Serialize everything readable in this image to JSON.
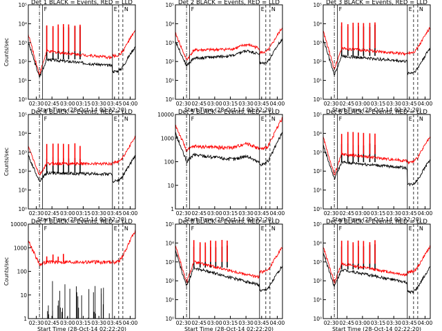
{
  "figure": {
    "xlabel": "Start Time (28-Oct-14 02:22:20)",
    "ylabel": "Counts/sec",
    "x_ticks": [
      "02:30",
      "02:45",
      "03:00",
      "03:15",
      "03:30",
      "03:45",
      "04:00"
    ],
    "x_range": [
      "02:22:20",
      "04:05"
    ],
    "line_markers": [
      {
        "time": "02:33",
        "style": "dash-dot",
        "label": ""
      },
      {
        "time": "02:36",
        "style": "solid",
        "label": "F"
      },
      {
        "time": "03:43",
        "style": "solid",
        "label": "E"
      },
      {
        "time": "03:49",
        "style": "dashed",
        "label": ""
      },
      {
        "time": "03:53",
        "style": "dashed",
        "label": "N"
      }
    ],
    "colors": {
      "events": "#000000",
      "lld": "#ff0000",
      "axes": "#000000"
    }
  },
  "chart_data": [
    {
      "type": "line",
      "title": "Det 1 BLACK = Events, RED = LLD",
      "yscale": "log",
      "ytick_labels": [
        "10⁰",
        "10¹",
        "10²",
        "10³",
        "10⁴",
        "10⁵"
      ],
      "ylim": [
        1,
        100000
      ],
      "series": [
        {
          "name": "Events",
          "color": "#000000",
          "profile": "flare",
          "base": 130,
          "dip": 15,
          "late": 60,
          "spikes": 7,
          "spike_amp": 8000,
          "tail": 30
        },
        {
          "name": "LLD",
          "color": "#ff0000",
          "profile": "flare",
          "base": 350,
          "dip": 20,
          "late": 160,
          "spikes": 7,
          "spike_amp": 10000,
          "tail": 200
        }
      ]
    },
    {
      "type": "line",
      "title": "Det 2 BLACK = Events, RED = LLD",
      "yscale": "log",
      "ytick_labels": [
        "10⁰",
        "10¹",
        "10²",
        "10³",
        "10⁴",
        "10⁵"
      ],
      "ylim": [
        1,
        100000
      ],
      "series": [
        {
          "name": "Events",
          "color": "#000000",
          "profile": "steady",
          "base": 150,
          "dip": 60,
          "late": 250,
          "spikes": 0,
          "spike_amp": 0,
          "tail": 80
        },
        {
          "name": "LLD",
          "color": "#ff0000",
          "profile": "steady",
          "base": 400,
          "dip": 120,
          "late": 500,
          "spikes": 0,
          "spike_amp": 0,
          "tail": 300
        }
      ]
    },
    {
      "type": "line",
      "title": "Det 3 BLACK = Events, RED = LLD",
      "yscale": "log",
      "ytick_labels": [
        "10⁰",
        "10¹",
        "10²",
        "10³",
        "10⁴",
        "10⁵"
      ],
      "ylim": [
        1,
        100000
      ],
      "series": [
        {
          "name": "Events",
          "color": "#000000",
          "profile": "flare",
          "base": 200,
          "dip": 20,
          "late": 100,
          "spikes": 7,
          "spike_amp": 9000,
          "tail": 25
        },
        {
          "name": "LLD",
          "color": "#ff0000",
          "profile": "flare",
          "base": 500,
          "dip": 40,
          "late": 250,
          "spikes": 7,
          "spike_amp": 12000,
          "tail": 300
        }
      ]
    },
    {
      "type": "line",
      "title": "Det 4 BLACK = Events, RED = LLD",
      "yscale": "log",
      "ytick_labels": [
        "10⁰",
        "10¹",
        "10²",
        "10³",
        "10⁴",
        "10⁵"
      ],
      "ylim": [
        1,
        100000
      ],
      "series": [
        {
          "name": "Events",
          "color": "#000000",
          "profile": "flare",
          "base": 80,
          "dip": 30,
          "late": 70,
          "spikes": 7,
          "spike_amp": 600,
          "tail": 30
        },
        {
          "name": "LLD",
          "color": "#ff0000",
          "profile": "flare",
          "base": 250,
          "dip": 60,
          "late": 250,
          "spikes": 7,
          "spike_amp": 3000,
          "tail": 300
        }
      ]
    },
    {
      "type": "line",
      "title": "Det 5 BLACK = Events, RED = LLD",
      "yscale": "log",
      "ytick_labels": [
        "1",
        "10",
        "100",
        "1000",
        "10000"
      ],
      "ylim": [
        1,
        10000
      ],
      "series": [
        {
          "name": "Events",
          "color": "#000000",
          "profile": "steady",
          "base": 200,
          "dip": 100,
          "late": 90,
          "spikes": 0,
          "spike_amp": 0,
          "tail": 80
        },
        {
          "name": "LLD",
          "color": "#ff0000",
          "profile": "steady",
          "base": 450,
          "dip": 300,
          "late": 350,
          "spikes": 0,
          "spike_amp": 0,
          "tail": 350
        }
      ]
    },
    {
      "type": "line",
      "title": "Det 6 BLACK = Events, RED = LLD",
      "yscale": "log",
      "ytick_labels": [
        "10⁰",
        "10¹",
        "10²",
        "10³",
        "10⁴",
        "10⁵"
      ],
      "ylim": [
        1,
        100000
      ],
      "series": [
        {
          "name": "Events",
          "color": "#000000",
          "profile": "flare",
          "base": 300,
          "dip": 40,
          "late": 150,
          "spikes": 7,
          "spike_amp": 3000,
          "tail": 20
        },
        {
          "name": "LLD",
          "color": "#ff0000",
          "profile": "flare",
          "base": 800,
          "dip": 60,
          "late": 350,
          "spikes": 7,
          "spike_amp": 12000,
          "tail": 300
        }
      ]
    },
    {
      "type": "line",
      "title": "Det 7 BLACK = Events, RED = LLD",
      "yscale": "log",
      "ytick_labels": [
        "1",
        "10",
        "100",
        "1000",
        "10000"
      ],
      "ylim": [
        1,
        10000
      ],
      "series": [
        {
          "name": "Events",
          "color": "#000000",
          "profile": "sparse",
          "base": 3,
          "dip": 1,
          "late": 30,
          "spikes": 0,
          "spike_amp": 0,
          "tail": 1
        },
        {
          "name": "LLD",
          "color": "#ff0000",
          "profile": "flare",
          "base": 250,
          "dip": 200,
          "late": 250,
          "spikes": 4,
          "spike_amp": 600,
          "tail": 250
        }
      ]
    },
    {
      "type": "line",
      "title": "Det 8 BLACK = Events, RED = LLD",
      "yscale": "log",
      "ytick_labels": [
        "10⁰",
        "10¹",
        "10²",
        "10³",
        "10⁴",
        "10⁵"
      ],
      "ylim": [
        1,
        100000
      ],
      "series": [
        {
          "name": "Events",
          "color": "#000000",
          "profile": "flare",
          "base": 500,
          "dip": 50,
          "late": 60,
          "spikes": 7,
          "spike_amp": 8000,
          "tail": 30
        },
        {
          "name": "LLD",
          "color": "#ff0000",
          "profile": "flare",
          "base": 1000,
          "dip": 80,
          "late": 150,
          "spikes": 7,
          "spike_amp": 15000,
          "tail": 300
        }
      ]
    },
    {
      "type": "line",
      "title": "Det 9 BLACK = Events, RED = LLD",
      "yscale": "log",
      "ytick_labels": [
        "10⁰",
        "10¹",
        "10²",
        "10³",
        "10⁴",
        "10⁵"
      ],
      "ylim": [
        1,
        100000
      ],
      "series": [
        {
          "name": "Events",
          "color": "#000000",
          "profile": "flare",
          "base": 400,
          "dip": 50,
          "late": 80,
          "spikes": 7,
          "spike_amp": 9000,
          "tail": 25
        },
        {
          "name": "LLD",
          "color": "#ff0000",
          "profile": "flare",
          "base": 800,
          "dip": 80,
          "late": 200,
          "spikes": 7,
          "spike_amp": 15000,
          "tail": 300
        }
      ]
    }
  ]
}
